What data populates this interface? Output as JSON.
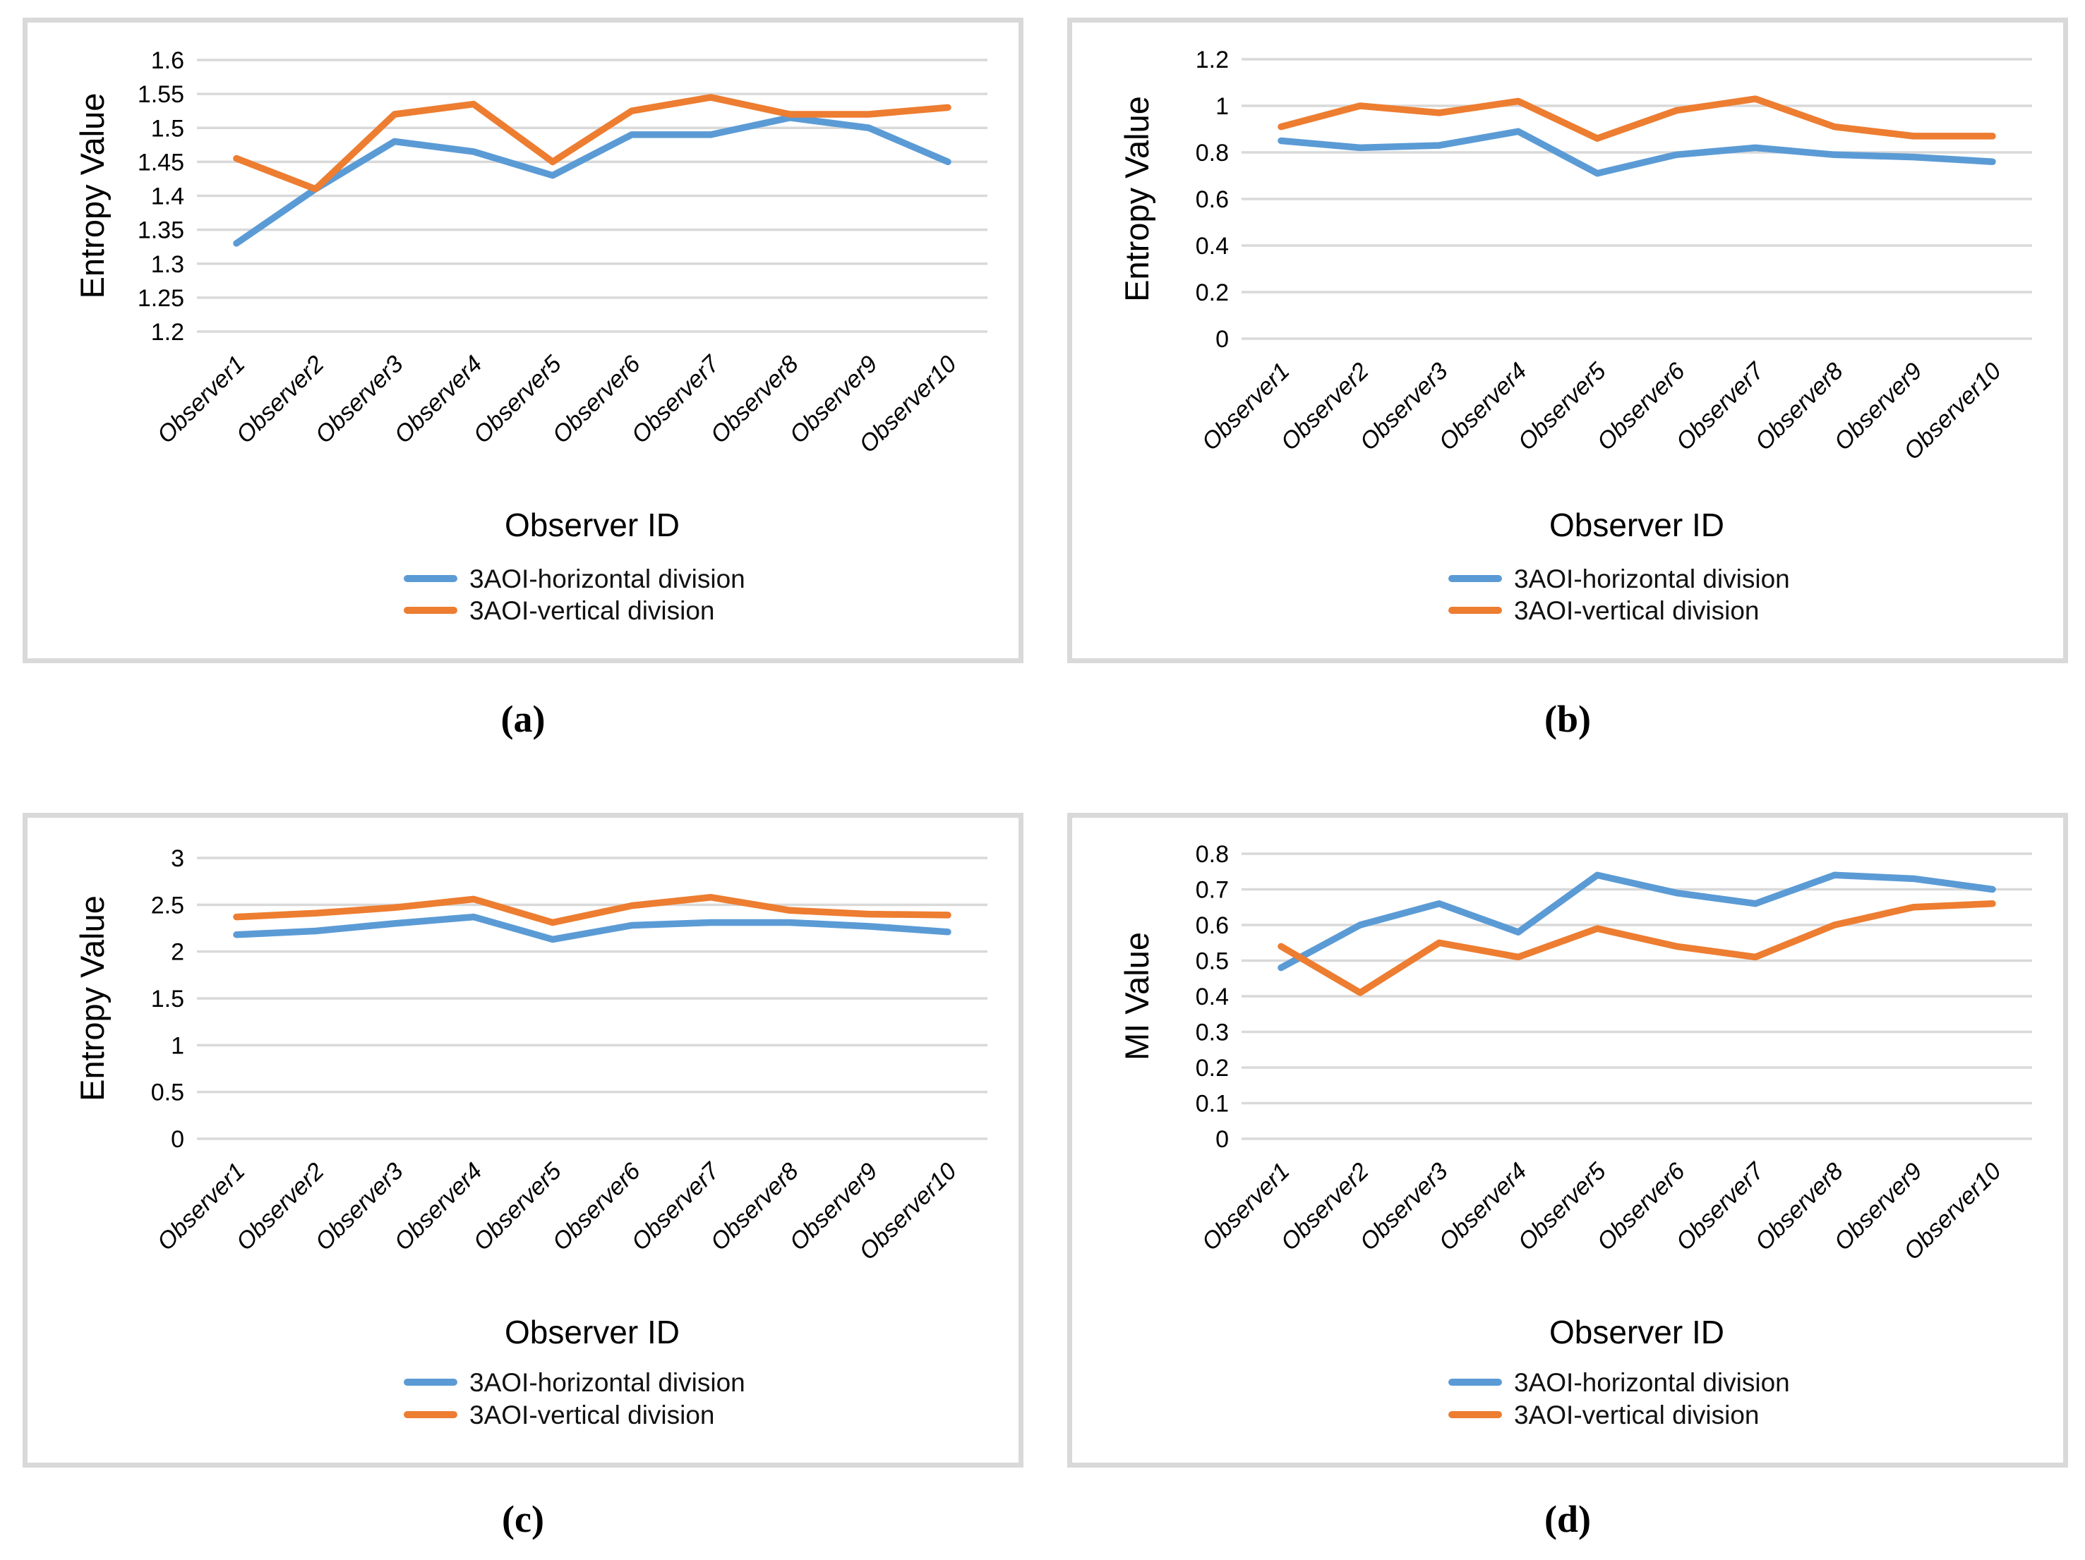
{
  "figure": {
    "captions": [
      "(a)",
      "(b)",
      "(c)",
      "(d)"
    ]
  },
  "colors": {
    "horizontal_series": "#5B9BD5",
    "vertical_series": "#ED7D31",
    "gridline": "#D9D9D9",
    "panel_border": "#D9D9D9",
    "text": "#000000"
  },
  "chart_data": [
    {
      "id": "a",
      "type": "line",
      "title": "",
      "xlabel": "Observer ID",
      "ylabel": "Entropy Value",
      "categories": [
        "Observer1",
        "Observer2",
        "Observer3",
        "Observer4",
        "Observer5",
        "Observer6",
        "Observer7",
        "Observer8",
        "Observer9",
        "Observer10"
      ],
      "ylim": [
        1.2,
        1.6
      ],
      "ytick_labels": [
        "1.6",
        "1.55",
        "1.5",
        "1.45",
        "1.4",
        "1.35",
        "1.3",
        "1.25",
        "1.2"
      ],
      "ytick_values": [
        1.6,
        1.55,
        1.5,
        1.45,
        1.4,
        1.35,
        1.3,
        1.25,
        1.2
      ],
      "grid": true,
      "legend_position": "bottom",
      "series": [
        {
          "name": "3AOI-horizontal division",
          "color": "#5B9BD5",
          "values": [
            1.33,
            1.41,
            1.48,
            1.465,
            1.43,
            1.49,
            1.49,
            1.515,
            1.5,
            1.45
          ]
        },
        {
          "name": "3AOI-vertical division",
          "color": "#ED7D31",
          "values": [
            1.455,
            1.41,
            1.52,
            1.535,
            1.45,
            1.525,
            1.545,
            1.52,
            1.52,
            1.53
          ]
        }
      ]
    },
    {
      "id": "b",
      "type": "line",
      "title": "",
      "xlabel": "Observer ID",
      "ylabel": "Entropy Value",
      "categories": [
        "Observer1",
        "Observer2",
        "Observer3",
        "Observer4",
        "Observer5",
        "Observer6",
        "Observer7",
        "Observer8",
        "Observer9",
        "Observer10"
      ],
      "ylim": [
        0,
        1.2
      ],
      "ytick_labels": [
        "1.2",
        "1",
        "0.8",
        "0.6",
        "0.4",
        "0.2",
        "0"
      ],
      "ytick_values": [
        1.2,
        1.0,
        0.8,
        0.6,
        0.4,
        0.2,
        0
      ],
      "grid": true,
      "legend_position": "bottom",
      "series": [
        {
          "name": "3AOI-horizontal division",
          "color": "#5B9BD5",
          "values": [
            0.85,
            0.82,
            0.83,
            0.89,
            0.71,
            0.79,
            0.82,
            0.79,
            0.78,
            0.76
          ]
        },
        {
          "name": "3AOI-vertical division",
          "color": "#ED7D31",
          "values": [
            0.91,
            1.0,
            0.97,
            1.02,
            0.86,
            0.98,
            1.03,
            0.91,
            0.87,
            0.87
          ]
        }
      ]
    },
    {
      "id": "c",
      "type": "line",
      "title": "",
      "xlabel": "Observer ID",
      "ylabel": "Entropy Value",
      "categories": [
        "Observer1",
        "Observer2",
        "Observer3",
        "Observer4",
        "Observer5",
        "Observer6",
        "Observer7",
        "Observer8",
        "Observer9",
        "Observer10"
      ],
      "ylim": [
        0,
        3
      ],
      "ytick_labels": [
        "3",
        "2.5",
        "2",
        "1.5",
        "1",
        "0.5",
        "0"
      ],
      "ytick_values": [
        3,
        2.5,
        2,
        1.5,
        1,
        0.5,
        0
      ],
      "grid": true,
      "legend_position": "bottom",
      "series": [
        {
          "name": "3AOI-horizontal division",
          "color": "#5B9BD5",
          "values": [
            2.18,
            2.22,
            2.3,
            2.37,
            2.13,
            2.28,
            2.31,
            2.31,
            2.27,
            2.21
          ]
        },
        {
          "name": "3AOI-vertical division",
          "color": "#ED7D31",
          "values": [
            2.37,
            2.41,
            2.47,
            2.56,
            2.31,
            2.49,
            2.58,
            2.44,
            2.4,
            2.39
          ]
        }
      ]
    },
    {
      "id": "d",
      "type": "line",
      "title": "",
      "xlabel": "Observer ID",
      "ylabel": "MI Value",
      "categories": [
        "Observer1",
        "Observer2",
        "Observer3",
        "Observer4",
        "Observer5",
        "Observer6",
        "Observer7",
        "Observer8",
        "Observer9",
        "Observer10"
      ],
      "ylim": [
        0,
        0.8
      ],
      "ytick_labels": [
        "0.8",
        "0.7",
        "0.6",
        "0.5",
        "0.4",
        "0.3",
        "0.2",
        "0.1",
        "0"
      ],
      "ytick_values": [
        0.8,
        0.7,
        0.6,
        0.5,
        0.4,
        0.3,
        0.2,
        0.1,
        0
      ],
      "grid": true,
      "legend_position": "bottom",
      "series": [
        {
          "name": "3AOI-horizontal division",
          "color": "#5B9BD5",
          "values": [
            0.48,
            0.6,
            0.66,
            0.58,
            0.74,
            0.69,
            0.66,
            0.74,
            0.73,
            0.7
          ]
        },
        {
          "name": "3AOI-vertical division",
          "color": "#ED7D31",
          "values": [
            0.54,
            0.41,
            0.55,
            0.51,
            0.59,
            0.54,
            0.51,
            0.6,
            0.65,
            0.66
          ]
        }
      ]
    }
  ]
}
